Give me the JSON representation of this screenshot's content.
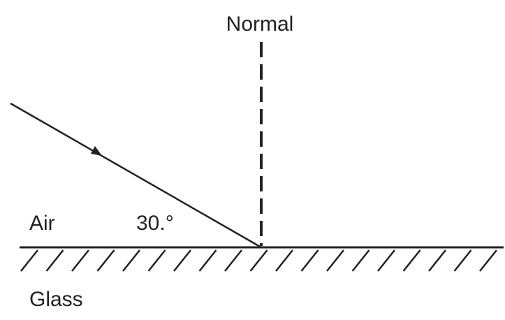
{
  "labels": {
    "normal": "Normal",
    "air": "Air",
    "angle": "30.°",
    "glass": "Glass"
  }
}
